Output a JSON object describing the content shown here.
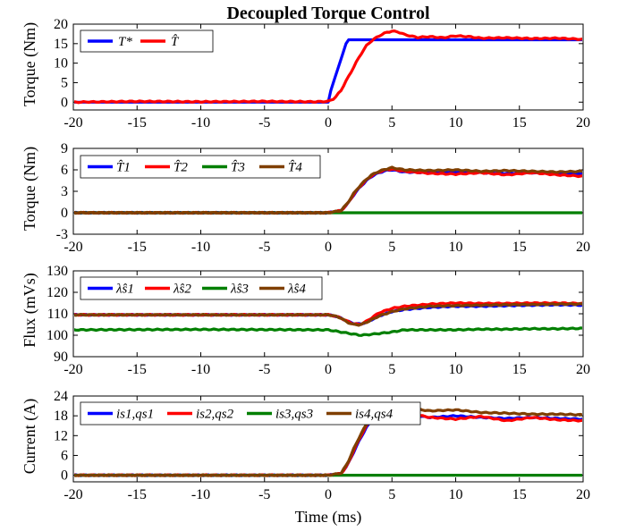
{
  "colors": {
    "blue": "#0000ff",
    "red": "#ff0000",
    "green": "#007f00",
    "brown": "#7f3f00"
  },
  "chart_data": [
    {
      "type": "line",
      "title": "Decoupled Torque Control",
      "ylabel": "Torque (Nm)",
      "xlabel": "",
      "xlim": [
        -20,
        20
      ],
      "ylim": [
        -2,
        20
      ],
      "xticks": [
        "-20",
        "-15",
        "-10",
        "-5",
        "0",
        "5",
        "10",
        "15",
        "20"
      ],
      "yticks": [
        "0",
        "5",
        "10",
        "15",
        "20"
      ],
      "legend_position": "top-left",
      "series": [
        {
          "name": "T*",
          "color": "blue",
          "x": [
            -20,
            0,
            0.2,
            0.5,
            0.8,
            1.1,
            1.4,
            1.6,
            20
          ],
          "y": [
            0,
            0,
            3,
            6,
            9,
            12,
            15,
            16,
            16
          ]
        },
        {
          "name": "T̂",
          "color": "red",
          "x": [
            -20,
            -15,
            -10,
            -5,
            -1,
            0,
            0.5,
            1,
            1.5,
            2,
            2.5,
            3,
            3.5,
            4,
            4.5,
            5,
            5.5,
            6,
            7,
            8,
            9,
            10,
            11,
            12,
            14,
            16,
            18,
            20
          ],
          "y": [
            0,
            0.2,
            0.1,
            0.2,
            0.1,
            0.2,
            1,
            3,
            6,
            9,
            12,
            14.5,
            16,
            17,
            17.8,
            18.2,
            18,
            17.3,
            16.6,
            16.8,
            16.5,
            17,
            16.8,
            16.4,
            16.5,
            16.3,
            16.4,
            16.1
          ]
        }
      ]
    },
    {
      "type": "line",
      "ylabel": "Torque (Nm)",
      "xlim": [
        -20,
        20
      ],
      "ylim": [
        -3,
        9
      ],
      "xticks": [
        "-20",
        "-15",
        "-10",
        "-5",
        "0",
        "5",
        "10",
        "15",
        "20"
      ],
      "yticks": [
        "-3",
        "0",
        "3",
        "6",
        "9"
      ],
      "legend_position": "top-left",
      "series": [
        {
          "name": "T̂1",
          "color": "blue",
          "x": [
            -20,
            0,
            1,
            1.5,
            2,
            2.5,
            3,
            3.5,
            4,
            4.5,
            5,
            6,
            8,
            10,
            12,
            14,
            16,
            18,
            20
          ],
          "y": [
            0,
            0,
            0.3,
            1.2,
            2.5,
            3.6,
            4.5,
            5.2,
            5.6,
            5.9,
            6,
            5.7,
            5.6,
            5.7,
            5.6,
            5.5,
            5.6,
            5.5,
            5.5
          ]
        },
        {
          "name": "T̂2",
          "color": "red",
          "x": [
            -20,
            0,
            1,
            1.5,
            2,
            2.5,
            3,
            3.5,
            4,
            4.5,
            5,
            6,
            8,
            10,
            12,
            14,
            16,
            18,
            20
          ],
          "y": [
            0,
            0,
            0.3,
            1.2,
            2.6,
            3.7,
            4.6,
            5.3,
            5.7,
            6,
            6.1,
            5.8,
            5.5,
            5.4,
            5.6,
            5.3,
            5.6,
            5.3,
            5.1
          ]
        },
        {
          "name": "T̂3",
          "color": "green",
          "x": [
            -20,
            20
          ],
          "y": [
            0,
            0
          ]
        },
        {
          "name": "T̂4",
          "color": "brown",
          "x": [
            -20,
            0,
            1,
            1.5,
            2,
            2.5,
            3,
            3.5,
            4,
            4.5,
            5,
            6,
            8,
            10,
            12,
            14,
            16,
            18,
            20
          ],
          "y": [
            0,
            0,
            0.3,
            1.3,
            2.7,
            3.8,
            4.7,
            5.4,
            5.8,
            6.1,
            6.3,
            6,
            5.9,
            6,
            5.8,
            5.9,
            5.8,
            5.7,
            5.8
          ]
        }
      ]
    },
    {
      "type": "line",
      "ylabel": "Flux (mVs)",
      "xlim": [
        -20,
        20
      ],
      "ylim": [
        90,
        130
      ],
      "xticks": [
        "-20",
        "-15",
        "-10",
        "-5",
        "0",
        "5",
        "10",
        "15",
        "20"
      ],
      "yticks": [
        "90",
        "100",
        "110",
        "120",
        "130"
      ],
      "legend_position": "top",
      "series": [
        {
          "name": "λ̂s1",
          "color": "blue",
          "x": [
            -20,
            0,
            0.5,
            1,
            1.5,
            2,
            2.5,
            3,
            3.5,
            4,
            5,
            6,
            8,
            10,
            12,
            14,
            16,
            18,
            20
          ],
          "y": [
            109.5,
            109.5,
            109,
            108,
            106.5,
            105.5,
            105.2,
            106,
            107.5,
            109,
            111,
            112,
            113,
            113.5,
            113.5,
            113.8,
            114,
            114.2,
            114
          ]
        },
        {
          "name": "λ̂s2",
          "color": "red",
          "x": [
            -20,
            0,
            0.5,
            1,
            1.5,
            2,
            2.5,
            3,
            3.5,
            4,
            5,
            6,
            8,
            10,
            12,
            14,
            16,
            18,
            20
          ],
          "y": [
            109.5,
            109.5,
            109,
            108,
            106.5,
            105.3,
            105,
            106.5,
            108.5,
            110.5,
            112.5,
            113.5,
            114.5,
            115,
            114.8,
            114.8,
            115,
            115,
            114.8
          ]
        },
        {
          "name": "λ̂s3",
          "color": "green",
          "x": [
            -20,
            -10,
            0,
            1,
            2,
            2.5,
            3,
            4,
            5,
            6,
            8,
            10,
            12,
            14,
            16,
            18,
            20
          ],
          "y": [
            102.5,
            102.7,
            102.5,
            101.5,
            100.5,
            100,
            100.2,
            100.8,
            101.5,
            102.5,
            102.5,
            102.5,
            102.8,
            102.8,
            103,
            103,
            103.2
          ]
        },
        {
          "name": "λ̂s4",
          "color": "brown",
          "x": [
            -20,
            0,
            0.5,
            1,
            1.5,
            2,
            2.5,
            3,
            3.5,
            4,
            5,
            6,
            8,
            10,
            12,
            14,
            16,
            18,
            20
          ],
          "y": [
            109.5,
            109.5,
            109,
            108,
            106,
            105,
            104.8,
            106,
            107.5,
            109,
            111,
            112.3,
            113.5,
            113.8,
            114,
            114.2,
            114.3,
            114.5,
            114.5
          ]
        }
      ]
    },
    {
      "type": "line",
      "ylabel": "Current (A)",
      "xlabel": "Time (ms)",
      "xlim": [
        -20,
        20
      ],
      "ylim": [
        -2,
        24
      ],
      "xticks": [
        "-20",
        "-15",
        "-10",
        "-5",
        "0",
        "5",
        "10",
        "15",
        "20"
      ],
      "yticks": [
        "0",
        "6",
        "12",
        "18",
        "24"
      ],
      "legend_position": "top",
      "series": [
        {
          "name": "is1,qs1",
          "color": "blue",
          "x": [
            -20,
            0,
            1,
            1.5,
            2,
            2.5,
            3,
            3.5,
            4,
            4.5,
            5,
            6,
            8,
            10,
            12,
            14,
            16,
            18,
            20
          ],
          "y": [
            0,
            0,
            0.5,
            3,
            7,
            11,
            14.5,
            17,
            18.5,
            19.5,
            19.8,
            18.5,
            17.5,
            18,
            17.5,
            17.2,
            17.5,
            17.2,
            17
          ]
        },
        {
          "name": "is2,qs2",
          "color": "red",
          "x": [
            -20,
            0,
            1,
            1.5,
            2,
            2.5,
            3,
            3.5,
            4,
            4.5,
            5,
            6,
            8,
            10,
            12,
            14,
            16,
            18,
            20
          ],
          "y": [
            0,
            0,
            0.5,
            3,
            7.5,
            11.5,
            15,
            17.5,
            19,
            20,
            20.2,
            19,
            17.5,
            17,
            17.8,
            16.5,
            17.5,
            16.8,
            16.5
          ]
        },
        {
          "name": "is3,qs3",
          "color": "green",
          "x": [
            -20,
            20
          ],
          "y": [
            0,
            0
          ]
        },
        {
          "name": "is4,qs4",
          "color": "brown",
          "x": [
            -20,
            0,
            1,
            1.5,
            2,
            2.5,
            3,
            3.5,
            4,
            4.5,
            5,
            6,
            8,
            10,
            12,
            14,
            16,
            18,
            20
          ],
          "y": [
            0,
            0,
            0.6,
            3.5,
            8,
            12,
            15.5,
            18,
            19.5,
            20.5,
            21,
            20.5,
            19.5,
            19.8,
            19,
            18.8,
            18.5,
            18.5,
            18.3
          ]
        }
      ]
    }
  ]
}
